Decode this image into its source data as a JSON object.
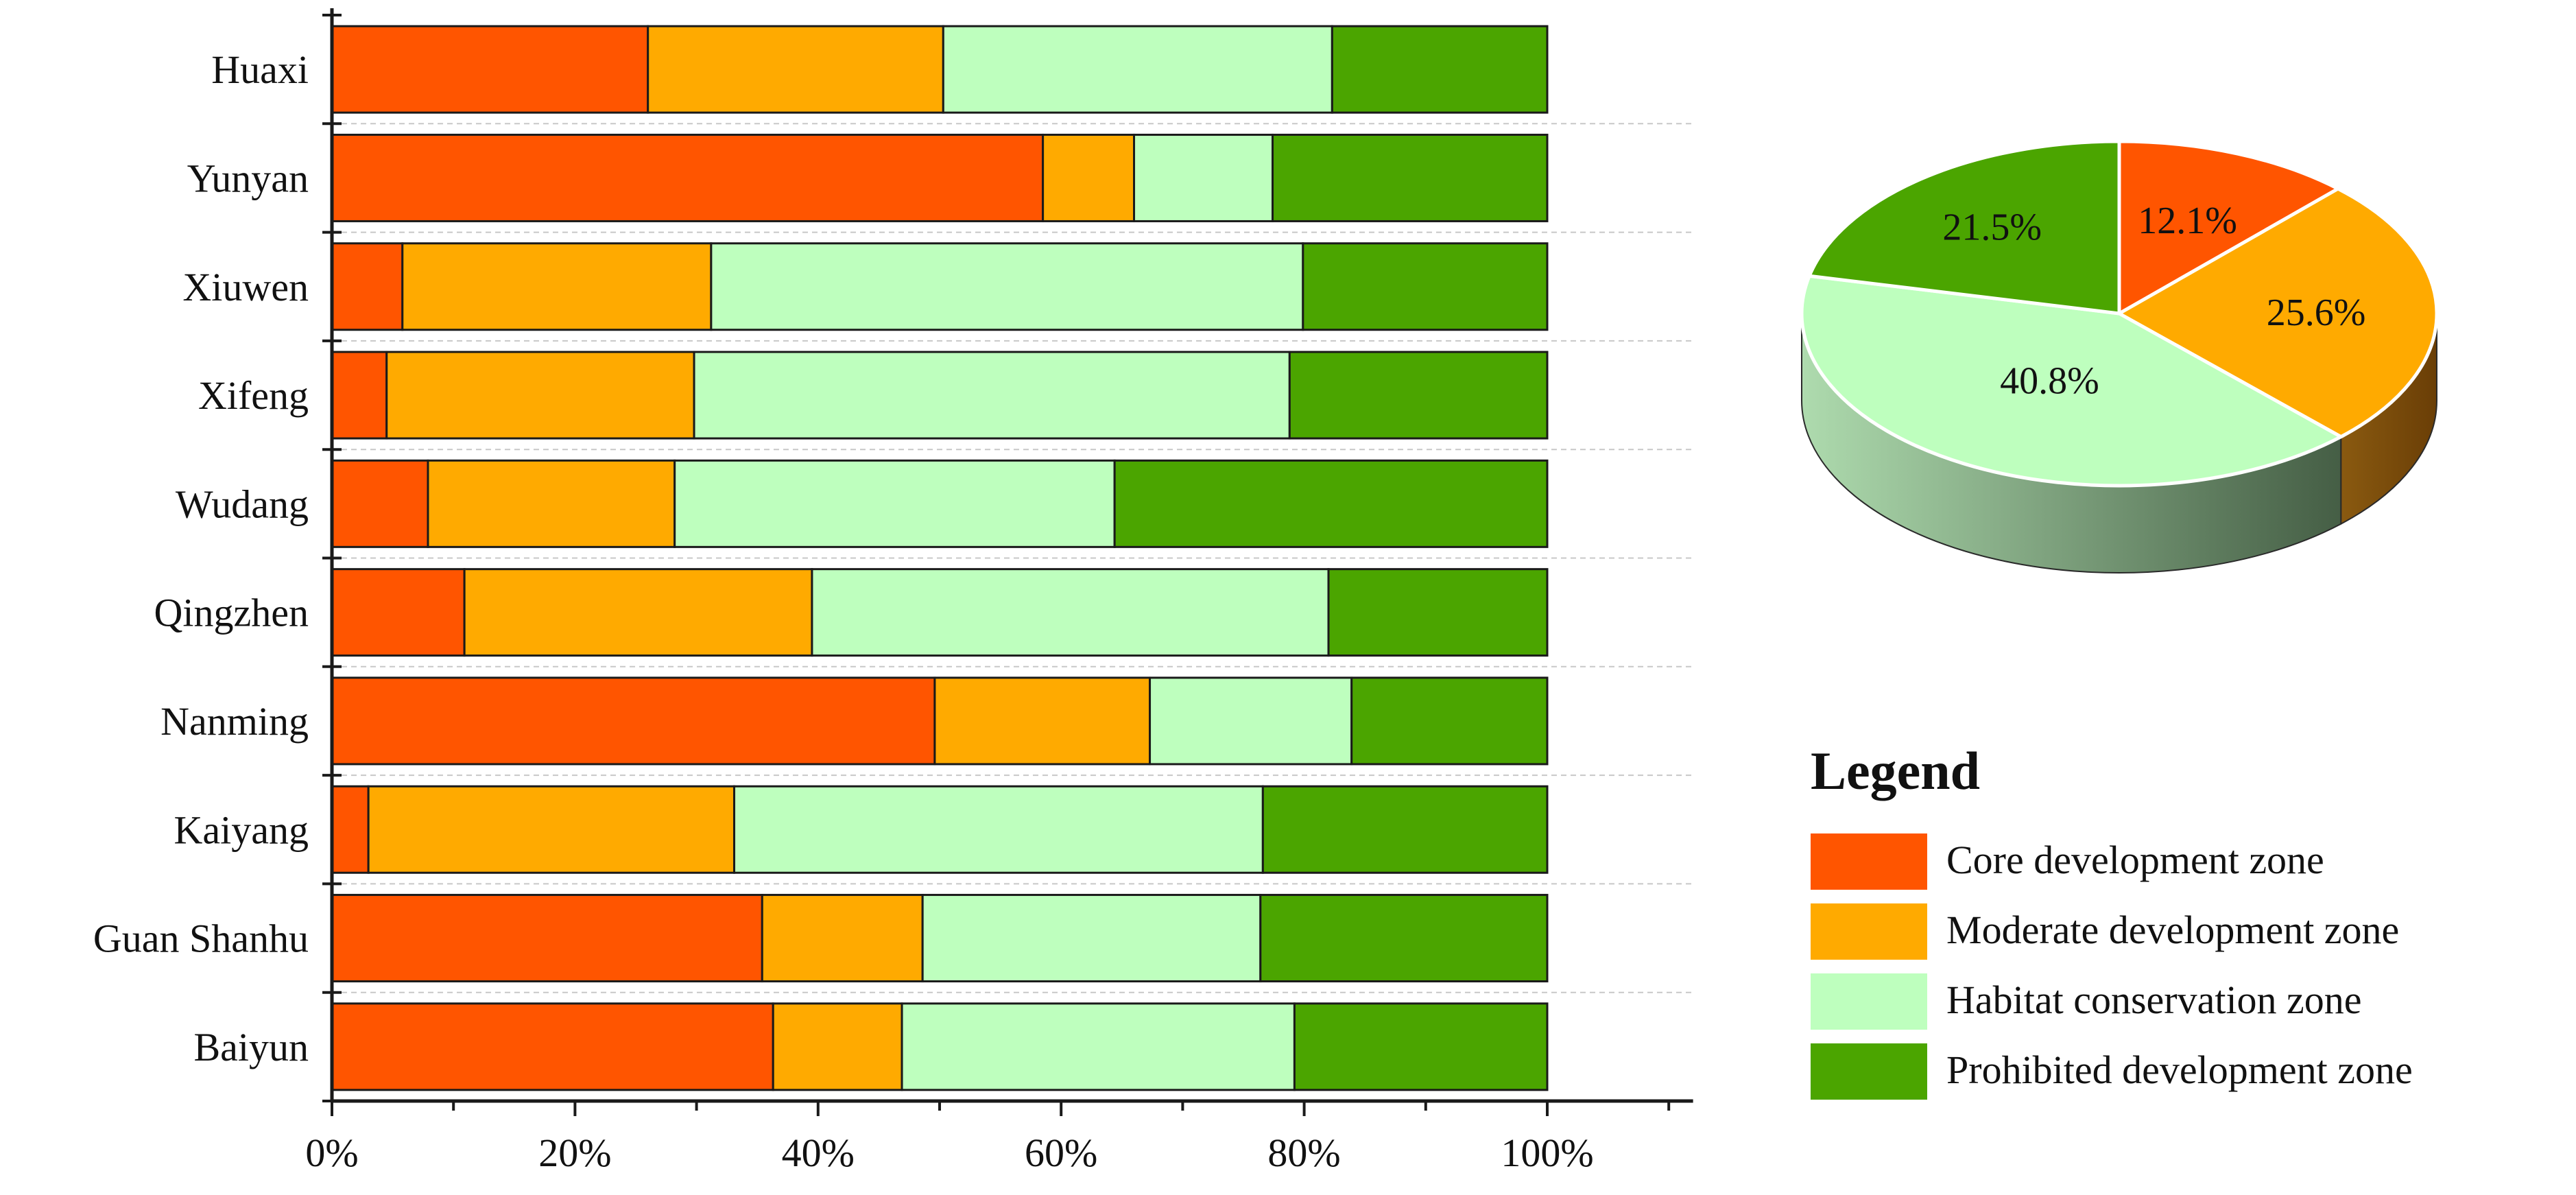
{
  "colors": {
    "core": "#FF5500",
    "moderate": "#FFAA00",
    "habitat": "#BEFFBE",
    "prohibited": "#4BA500",
    "core_side": "#8A3A10",
    "moderate_side": "#7A4A08",
    "habitat_side_light": "#AEDBAE",
    "habitat_side_dark": "#455E45"
  },
  "chart_data": [
    {
      "type": "bar",
      "orientation": "horizontal",
      "stacked": true,
      "percent": true,
      "categories": [
        "Huaxi",
        "Yunyan",
        "Xiuwen",
        "Xifeng",
        "Wudang",
        "Qingzhen",
        "Nanming",
        "Kaiyang",
        "Guan Shanhu",
        "Baiyun"
      ],
      "series": [
        {
          "name": "Core development zone",
          "values": [
            26.0,
            58.5,
            5.8,
            4.5,
            7.9,
            10.9,
            49.6,
            3.0,
            35.4,
            36.3
          ]
        },
        {
          "name": "Moderate development zone",
          "values": [
            24.3,
            7.5,
            25.4,
            25.3,
            20.3,
            28.6,
            17.7,
            30.1,
            13.2,
            10.6
          ]
        },
        {
          "name": "Habitat conservation zone",
          "values": [
            32.0,
            11.4,
            48.7,
            49.0,
            36.2,
            42.5,
            16.6,
            43.5,
            27.8,
            32.3
          ]
        },
        {
          "name": "Prohibited development zone",
          "values": [
            17.7,
            22.6,
            20.1,
            21.2,
            35.6,
            18.0,
            16.1,
            23.4,
            23.6,
            20.8
          ]
        }
      ],
      "xlim": [
        0,
        112
      ],
      "xticks": [
        "0%",
        "20%",
        "40%",
        "60%",
        "80%",
        "100%"
      ],
      "grid": "horizontal-dashed"
    },
    {
      "type": "pie",
      "style": "3d",
      "labels": [
        "Core development zone",
        "Moderate development zone",
        "Habitat conservation zone",
        "Prohibited development zone"
      ],
      "values": [
        12.1,
        25.6,
        40.8,
        21.5
      ],
      "value_labels": [
        "12.1%",
        "25.6%",
        "40.8%",
        "21.5%"
      ]
    }
  ],
  "legend": {
    "title": "Legend",
    "items": [
      "Core development zone",
      "Moderate development zone",
      "Habitat conservation zone",
      "Prohibited development zone"
    ]
  }
}
